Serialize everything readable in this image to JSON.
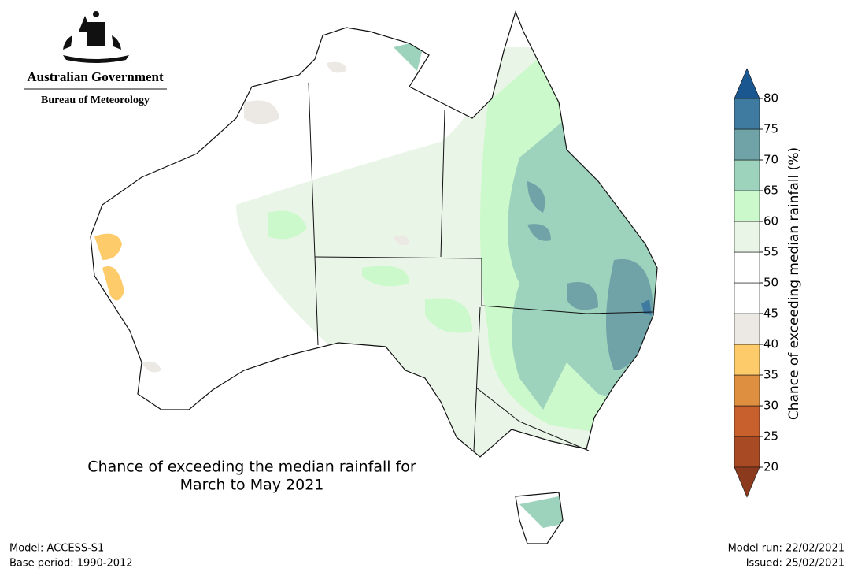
{
  "header": {
    "government": "Australian Government",
    "agency": "Bureau of Meteorology"
  },
  "map": {
    "title": [
      "Chance of exceeding the median rainfall for",
      "March to May 2021"
    ]
  },
  "colorbar": {
    "label": "Chance of exceeding median rainfall (%)",
    "ticks": [
      20,
      25,
      30,
      35,
      40,
      45,
      50,
      55,
      60,
      65,
      70,
      75,
      80
    ],
    "colors": [
      "#a84a24",
      "#c8602e",
      "#de9040",
      "#fdcb6a",
      "#ece9e4",
      "#ffffff",
      "#ffffff",
      "#e9f5e7",
      "#ccf9cb",
      "#9dd3bd",
      "#6fa3a8",
      "#3f7ba0"
    ],
    "under_color": "#8c3a1e",
    "over_color": "#1a5690"
  },
  "footer": {
    "model": "Model: ACCESS-S1",
    "base_period": "Base period: 1990-2012",
    "model_run": "Model run: 22/02/2021",
    "issued": "Issued: 25/02/2021"
  }
}
